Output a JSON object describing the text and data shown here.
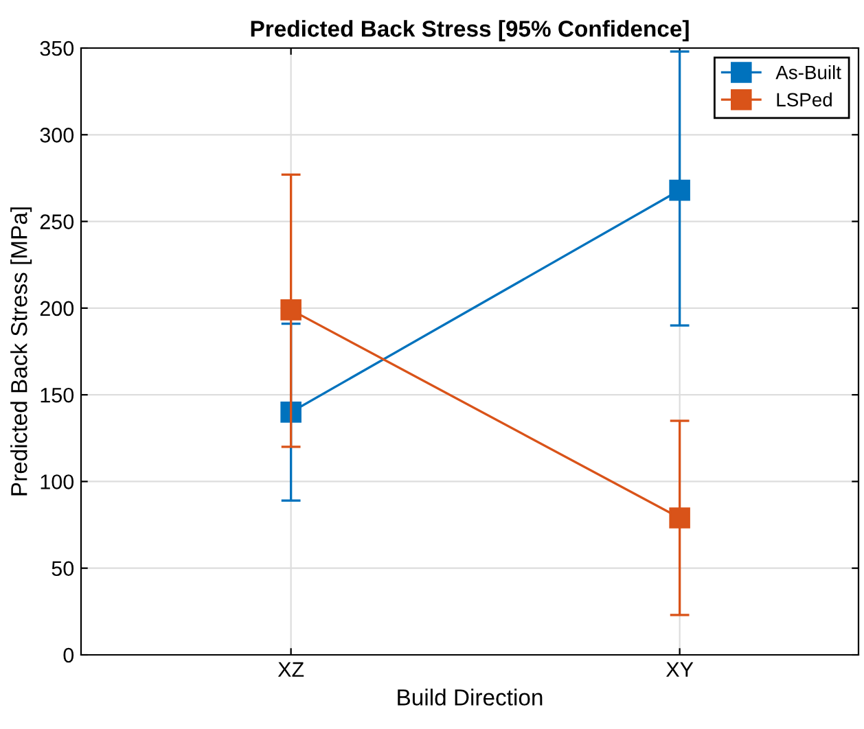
{
  "chart_data": {
    "type": "line",
    "title": "Predicted Back Stress [95% Confidence]",
    "xlabel": "Build Direction",
    "ylabel": "Predicted Back Stress [MPa]",
    "categories": [
      "XZ",
      "XY"
    ],
    "series": [
      {
        "name": "As-Built",
        "color": "#0072bd",
        "values": [
          140,
          268
        ],
        "errors": [
          [
            89,
            191
          ],
          [
            190,
            348
          ]
        ]
      },
      {
        "name": "LSPed",
        "color": "#d95319",
        "values": [
          199,
          79
        ],
        "errors": [
          [
            120,
            277
          ],
          [
            23,
            135
          ]
        ]
      }
    ],
    "ylim": [
      0,
      350
    ],
    "yticks": [
      0,
      50,
      100,
      150,
      200,
      250,
      300,
      350
    ],
    "grid": true,
    "legend": "top right",
    "marker": "square",
    "line_style": "solid"
  }
}
